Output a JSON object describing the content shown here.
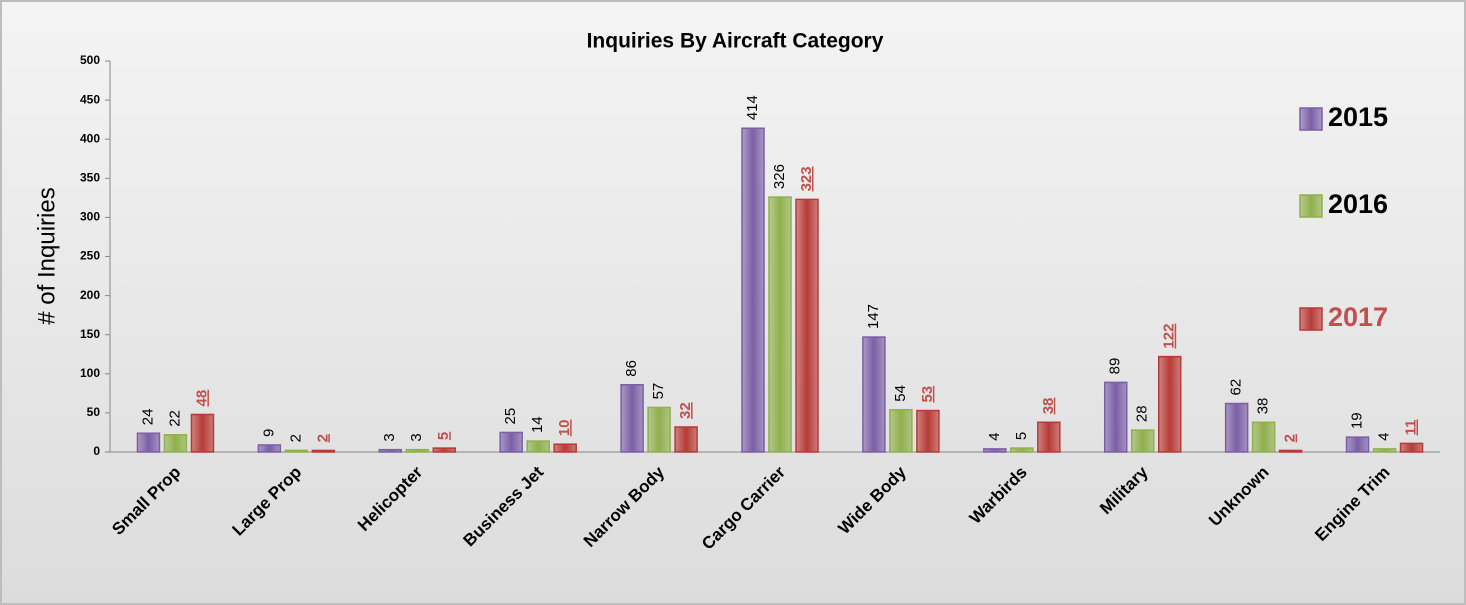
{
  "chart_data": {
    "type": "bar",
    "title": "Inquiries By Aircraft Category",
    "y_label": "# of Inquiries",
    "categories": [
      "Small Prop",
      "Large Prop",
      "Helicopter",
      "Business Jet",
      "Narrow Body",
      "Cargo Carrier",
      "Wide Body",
      "Warbirds",
      "Military",
      "Unknown",
      "Engine Trim"
    ],
    "series": [
      {
        "name": "2015",
        "color": "#7b5fa6",
        "label_color": "#000000",
        "values": [
          24,
          9,
          3,
          25,
          86,
          414,
          147,
          4,
          89,
          62,
          19
        ]
      },
      {
        "name": "2016",
        "color": "#8fb04a",
        "label_color": "#000000",
        "values": [
          22,
          2,
          3,
          14,
          57,
          326,
          54,
          5,
          28,
          38,
          4
        ]
      },
      {
        "name": "2017",
        "color": "#b83a36",
        "label_color": "#c0504d",
        "values": [
          48,
          2,
          5,
          10,
          32,
          323,
          53,
          38,
          122,
          2,
          11
        ]
      }
    ],
    "ylim": [
      0,
      500
    ],
    "yticks": [
      0,
      50,
      100,
      150,
      200,
      250,
      300,
      350,
      400,
      450,
      500
    ],
    "grid": false,
    "legend": "right"
  }
}
